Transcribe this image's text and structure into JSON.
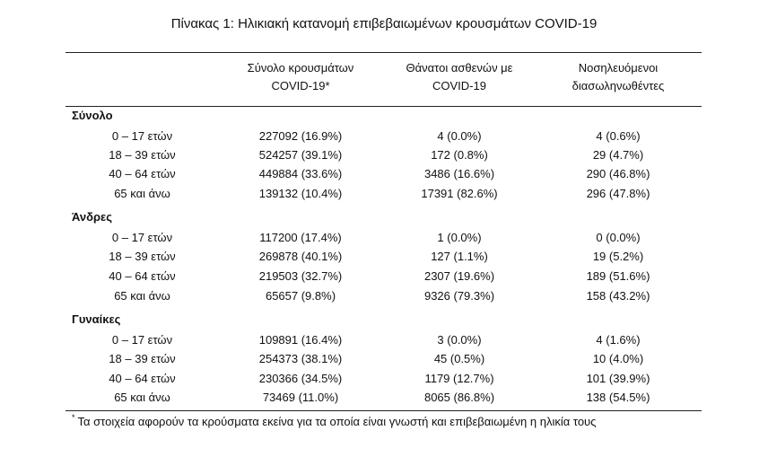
{
  "title": "Πίνακας 1: Ηλικιακή κατανομή επιβεβαιωμένων κρουσμάτων COVID-19",
  "columns": [
    {
      "line1": "Σύνολο κρουσμάτων",
      "line2": "COVID-19*"
    },
    {
      "line1": "Θάνατοι ασθενών με",
      "line2": "COVID-19"
    },
    {
      "line1": "Νοσηλευόμενοι",
      "line2": "διασωληνωθέντες"
    }
  ],
  "groups": [
    {
      "name": "Σύνολο",
      "rows": [
        {
          "label": "0 – 17 ετών",
          "cases": "227092 (16.9%)",
          "deaths": "4 (0.0%)",
          "intubated": "4 (0.6%)"
        },
        {
          "label": "18 – 39 ετών",
          "cases": "524257 (39.1%)",
          "deaths": "172 (0.8%)",
          "intubated": "29 (4.7%)"
        },
        {
          "label": "40 – 64 ετών",
          "cases": "449884 (33.6%)",
          "deaths": "3486 (16.6%)",
          "intubated": "290 (46.8%)"
        },
        {
          "label": "65 και άνω",
          "cases": "139132 (10.4%)",
          "deaths": "17391 (82.6%)",
          "intubated": "296 (47.8%)"
        }
      ]
    },
    {
      "name": "Άνδρες",
      "rows": [
        {
          "label": "0 – 17 ετών",
          "cases": "117200 (17.4%)",
          "deaths": "1 (0.0%)",
          "intubated": "0 (0.0%)"
        },
        {
          "label": "18 – 39 ετών",
          "cases": "269878 (40.1%)",
          "deaths": "127 (1.1%)",
          "intubated": "19 (5.2%)"
        },
        {
          "label": "40 – 64 ετών",
          "cases": "219503 (32.7%)",
          "deaths": "2307 (19.6%)",
          "intubated": "189 (51.6%)"
        },
        {
          "label": "65 και άνω",
          "cases": "65657 (9.8%)",
          "deaths": "9326 (79.3%)",
          "intubated": "158 (43.2%)"
        }
      ]
    },
    {
      "name": "Γυναίκες",
      "rows": [
        {
          "label": "0 – 17 ετών",
          "cases": "109891 (16.4%)",
          "deaths": "3 (0.0%)",
          "intubated": "4 (1.6%)"
        },
        {
          "label": "18 – 39 ετών",
          "cases": "254373 (38.1%)",
          "deaths": "45 (0.5%)",
          "intubated": "10 (4.0%)"
        },
        {
          "label": "40 – 64 ετών",
          "cases": "230366 (34.5%)",
          "deaths": "1179 (12.7%)",
          "intubated": "101 (39.9%)"
        },
        {
          "label": "65 και άνω",
          "cases": "73469 (11.0%)",
          "deaths": "8065 (86.8%)",
          "intubated": "138 (54.5%)"
        }
      ]
    }
  ],
  "footnote": {
    "mark": "*",
    "text": "Τα στοιχεία αφορούν τα κρούσματα εκείνα για τα οποία είναι γνωστή και επιβεβαιωμένη η ηλικία τους"
  }
}
